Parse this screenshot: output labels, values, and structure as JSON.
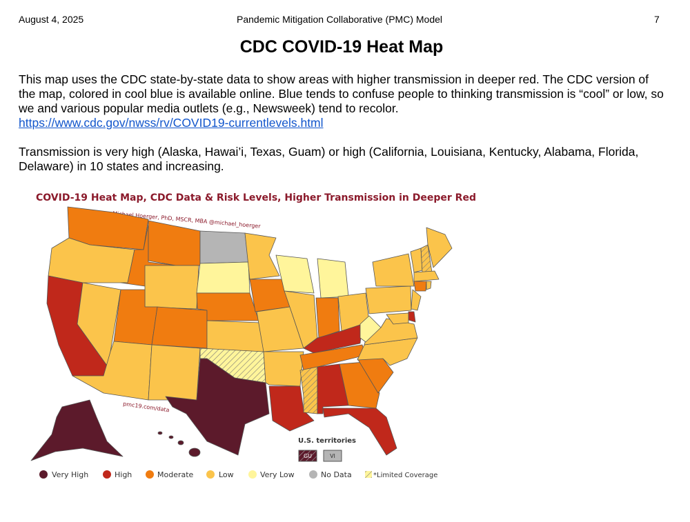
{
  "header": {
    "date": "August 4, 2025",
    "source": "Pandemic Mitigation Collaborative (PMC) Model",
    "page": "7"
  },
  "title": "CDC COVID-19 Heat Map",
  "paragraphs": [
    {
      "text": "This map uses the CDC state-by-state data to show areas with higher transmission in deeper red. The CDC version of the map, colored in cool blue is available online. Blue tends to confuse people to thinking transmission is “cool” or low, so we and various popular media outlets (e.g., Newsweek) tend to recolor.",
      "link": "https://www.cdc.gov/nwss/rv/COVID19-currentlevels.html"
    },
    {
      "text": "Transmission is very high (Alaska, Hawai’i, Texas, Guam) or high (California, Louisiana, Kentucky, Alabama, Florida, Delaware) in 10 states and increasing."
    }
  ],
  "map": {
    "title": "COVID-19 Heat Map, CDC Data & Risk Levels, Higher Transmission in Deeper Red",
    "credit": "Michael Hoerger, PhD, MSCR, MBA @michael_hoerger",
    "source": "pmc19.com/data",
    "territories": {
      "title": "U.S. territories",
      "items": [
        "GU",
        "VI"
      ]
    },
    "legend": [
      "Very High",
      "High",
      "Moderate",
      "Low",
      "Very Low",
      "No Data",
      "*Limited Coverage"
    ]
  }
}
